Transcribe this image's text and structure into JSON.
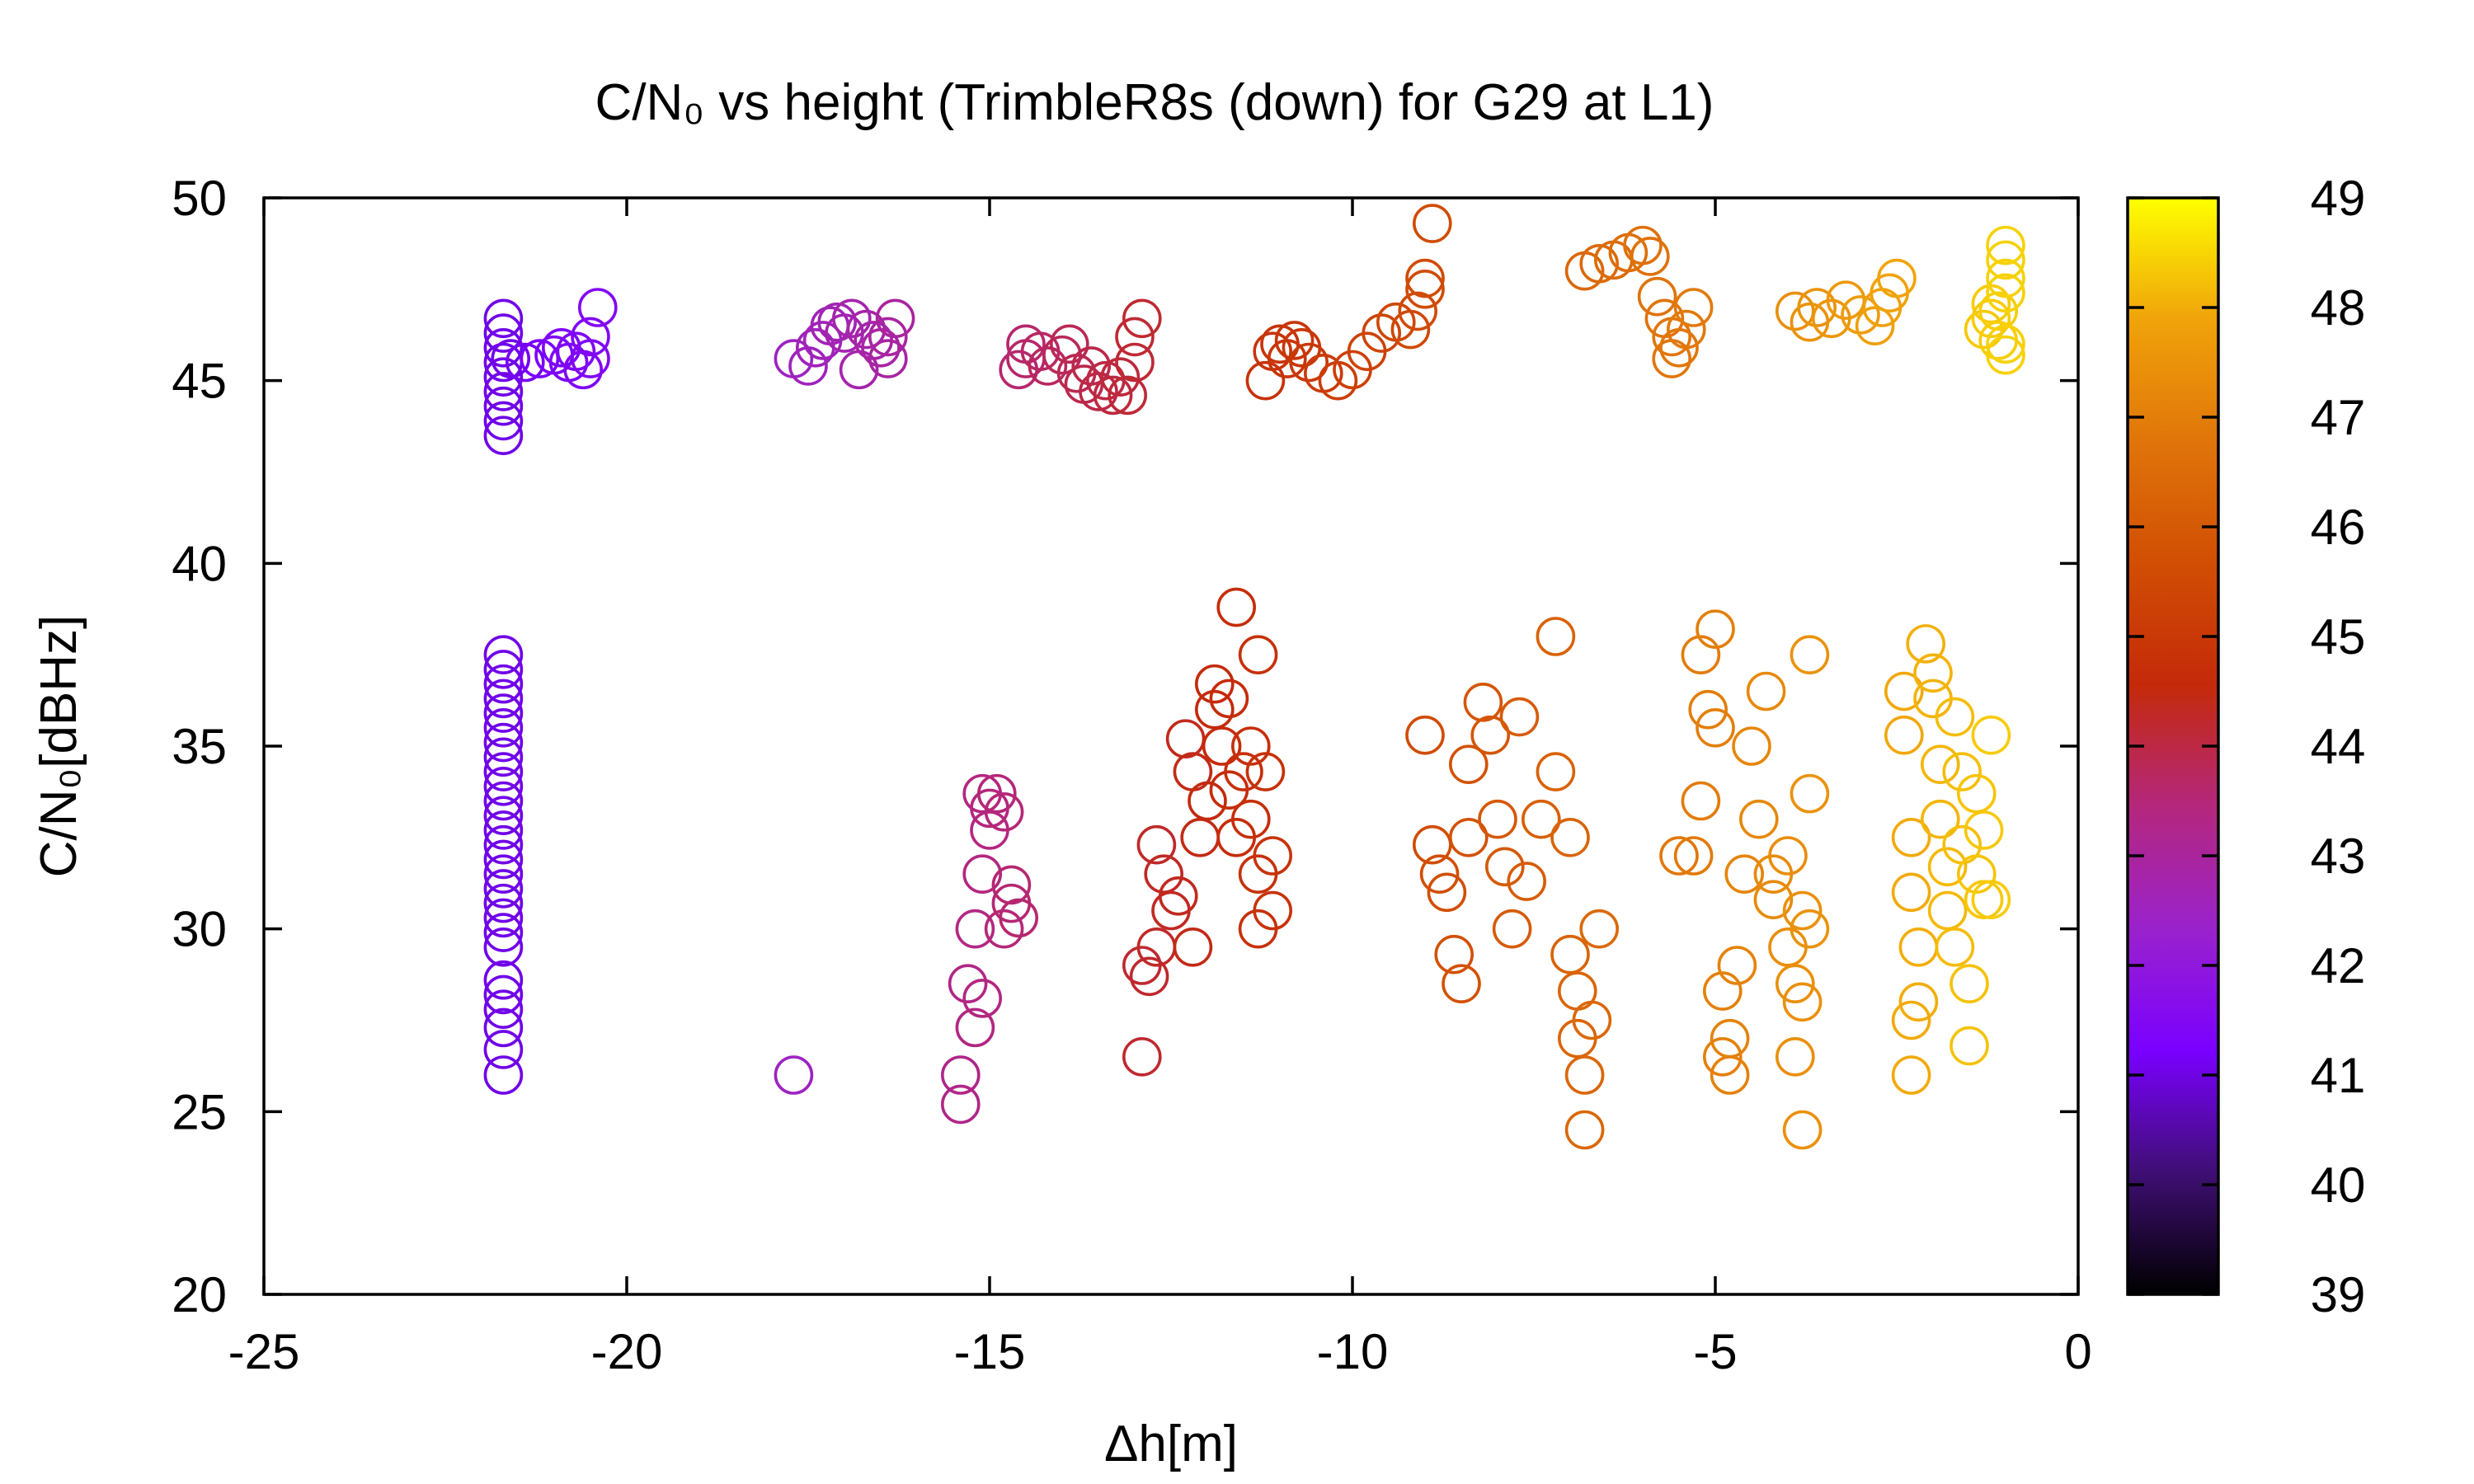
{
  "chart_data": {
    "type": "scatter",
    "title": "C/N₀ vs height (TrimbleR8s (down) for G29 at L1)",
    "xlabel": "Δh[m]",
    "ylabel": "C/N₀[dBHz]",
    "xlim": [
      -25,
      0
    ],
    "ylim": [
      20,
      50
    ],
    "xticks": [
      "-25",
      "-20",
      "-15",
      "-10",
      "-5",
      "0"
    ],
    "yticks": [
      "20",
      "25",
      "30",
      "35",
      "40",
      "45",
      "50"
    ],
    "colorbar": {
      "min": 39,
      "max": 49,
      "ticks": [
        "39",
        "40",
        "41",
        "42",
        "43",
        "44",
        "45",
        "46",
        "47",
        "48",
        "49"
      ],
      "palette": [
        "#000000",
        "#3f0f74",
        "#7a00ff",
        "#9a22cc",
        "#b4277d",
        "#c42a0a",
        "#d14e04",
        "#e0750a",
        "#f0a30a",
        "#ffff00"
      ]
    },
    "marker": "open-circle",
    "points": [
      [
        -21.7,
        46.7
      ],
      [
        -21.7,
        46.3
      ],
      [
        -21.7,
        45.9
      ],
      [
        -21.7,
        45.5
      ],
      [
        -21.7,
        45.1
      ],
      [
        -21.7,
        44.7
      ],
      [
        -21.7,
        44.3
      ],
      [
        -21.7,
        43.9
      ],
      [
        -21.7,
        43.5
      ],
      [
        -21.6,
        45.6
      ],
      [
        -21.4,
        45.5
      ],
      [
        -21.2,
        45.6
      ],
      [
        -21.0,
        45.7
      ],
      [
        -20.9,
        45.9
      ],
      [
        -20.8,
        45.5
      ],
      [
        -20.7,
        45.8
      ],
      [
        -20.6,
        45.3
      ],
      [
        -20.5,
        45.6
      ],
      [
        -20.5,
        46.2
      ],
      [
        -20.4,
        47.0
      ],
      [
        -17.7,
        45.6
      ],
      [
        -17.5,
        45.4
      ],
      [
        -17.4,
        45.9
      ],
      [
        -17.3,
        46.1
      ],
      [
        -17.2,
        46.5
      ],
      [
        -17.1,
        46.6
      ],
      [
        -17.0,
        46.3
      ],
      [
        -16.9,
        46.7
      ],
      [
        -16.8,
        45.3
      ],
      [
        -16.7,
        46.4
      ],
      [
        -16.6,
        46.1
      ],
      [
        -16.5,
        45.9
      ],
      [
        -16.4,
        45.6
      ],
      [
        -16.4,
        46.2
      ],
      [
        -16.3,
        46.7
      ],
      [
        -14.6,
        45.3
      ],
      [
        -14.5,
        45.6
      ],
      [
        -14.5,
        46.0
      ],
      [
        -14.3,
        45.8
      ],
      [
        -14.2,
        45.4
      ],
      [
        -14.0,
        45.7
      ],
      [
        -13.9,
        46.0
      ],
      [
        -13.8,
        45.2
      ],
      [
        -13.7,
        44.9
      ],
      [
        -13.6,
        45.4
      ],
      [
        -13.5,
        44.7
      ],
      [
        -13.4,
        45.0
      ],
      [
        -13.3,
        44.6
      ],
      [
        -13.2,
        45.1
      ],
      [
        -13.1,
        44.6
      ],
      [
        -13.0,
        45.5
      ],
      [
        -13.0,
        46.2
      ],
      [
        -12.9,
        46.7
      ],
      [
        -11.2,
        45.0
      ],
      [
        -11.1,
        45.8
      ],
      [
        -11.0,
        46.0
      ],
      [
        -10.9,
        45.6
      ],
      [
        -10.8,
        46.1
      ],
      [
        -10.7,
        45.9
      ],
      [
        -10.6,
        45.5
      ],
      [
        -10.4,
        45.2
      ],
      [
        -10.2,
        45.0
      ],
      [
        -10.0,
        45.3
      ],
      [
        -9.8,
        45.8
      ],
      [
        -9.6,
        46.3
      ],
      [
        -9.4,
        46.6
      ],
      [
        -9.2,
        46.4
      ],
      [
        -9.1,
        46.9
      ],
      [
        -9.0,
        47.5
      ],
      [
        -9.0,
        47.8
      ],
      [
        -8.9,
        49.3
      ],
      [
        -6.8,
        48.0
      ],
      [
        -6.6,
        48.2
      ],
      [
        -6.4,
        48.3
      ],
      [
        -6.2,
        48.5
      ],
      [
        -6.0,
        48.7
      ],
      [
        -5.9,
        48.4
      ],
      [
        -5.8,
        47.3
      ],
      [
        -5.7,
        46.7
      ],
      [
        -5.6,
        46.2
      ],
      [
        -5.6,
        45.6
      ],
      [
        -5.5,
        45.9
      ],
      [
        -5.4,
        46.4
      ],
      [
        -5.3,
        47.0
      ],
      [
        -3.9,
        46.9
      ],
      [
        -3.7,
        46.6
      ],
      [
        -3.6,
        47.0
      ],
      [
        -3.4,
        46.7
      ],
      [
        -3.2,
        47.2
      ],
      [
        -3.0,
        46.8
      ],
      [
        -2.8,
        46.5
      ],
      [
        -2.7,
        47.0
      ],
      [
        -2.6,
        47.4
      ],
      [
        -2.5,
        47.8
      ],
      [
        -1.3,
        46.4
      ],
      [
        -1.2,
        46.7
      ],
      [
        -1.2,
        47.1
      ],
      [
        -1.1,
        46.1
      ],
      [
        -1.1,
        46.9
      ],
      [
        -1.0,
        47.4
      ],
      [
        -1.0,
        47.8
      ],
      [
        -1.0,
        48.3
      ],
      [
        -1.0,
        48.7
      ],
      [
        -1.0,
        46.0
      ],
      [
        -1.0,
        45.7
      ],
      [
        -21.7,
        37.5
      ],
      [
        -21.7,
        37.1
      ],
      [
        -21.7,
        36.7
      ],
      [
        -21.7,
        36.3
      ],
      [
        -21.7,
        35.9
      ],
      [
        -21.7,
        35.5
      ],
      [
        -21.7,
        35.1
      ],
      [
        -21.7,
        34.7
      ],
      [
        -21.7,
        34.3
      ],
      [
        -21.7,
        33.9
      ],
      [
        -21.7,
        33.5
      ],
      [
        -21.7,
        33.1
      ],
      [
        -21.7,
        32.7
      ],
      [
        -21.7,
        32.3
      ],
      [
        -21.7,
        31.9
      ],
      [
        -21.7,
        31.5
      ],
      [
        -21.7,
        31.1
      ],
      [
        -21.7,
        30.7
      ],
      [
        -21.7,
        30.3
      ],
      [
        -21.7,
        29.9
      ],
      [
        -21.7,
        29.5
      ],
      [
        -21.7,
        28.6
      ],
      [
        -21.7,
        28.2
      ],
      [
        -21.7,
        27.8
      ],
      [
        -21.7,
        27.3
      ],
      [
        -21.7,
        26.7
      ],
      [
        -21.7,
        26.0
      ],
      [
        -17.7,
        26.0
      ],
      [
        -15.4,
        25.2
      ],
      [
        -15.4,
        26.0
      ],
      [
        -15.3,
        28.5
      ],
      [
        -15.2,
        30.0
      ],
      [
        -15.2,
        27.3
      ],
      [
        -15.1,
        28.1
      ],
      [
        -15.1,
        31.5
      ],
      [
        -15.1,
        33.7
      ],
      [
        -15.0,
        32.7
      ],
      [
        -15.0,
        33.3
      ],
      [
        -14.9,
        33.7
      ],
      [
        -14.8,
        33.2
      ],
      [
        -14.8,
        30.0
      ],
      [
        -14.7,
        30.7
      ],
      [
        -14.7,
        31.2
      ],
      [
        -14.6,
        30.3
      ],
      [
        -12.9,
        26.5
      ],
      [
        -12.9,
        29.0
      ],
      [
        -12.8,
        28.7
      ],
      [
        -12.7,
        29.5
      ],
      [
        -12.7,
        32.3
      ],
      [
        -12.6,
        31.5
      ],
      [
        -12.5,
        30.5
      ],
      [
        -12.4,
        30.9
      ],
      [
        -12.3,
        35.2
      ],
      [
        -12.2,
        34.3
      ],
      [
        -12.2,
        29.5
      ],
      [
        -12.1,
        32.5
      ],
      [
        -12.0,
        33.5
      ],
      [
        -11.9,
        36.0
      ],
      [
        -11.9,
        36.7
      ],
      [
        -11.8,
        35.0
      ],
      [
        -11.7,
        36.3
      ],
      [
        -11.7,
        33.8
      ],
      [
        -11.6,
        38.8
      ],
      [
        -11.6,
        32.5
      ],
      [
        -11.5,
        34.3
      ],
      [
        -11.4,
        35.0
      ],
      [
        -11.4,
        33.0
      ],
      [
        -11.3,
        37.5
      ],
      [
        -11.3,
        31.5
      ],
      [
        -11.3,
        30.0
      ],
      [
        -11.2,
        34.3
      ],
      [
        -11.1,
        30.5
      ],
      [
        -11.1,
        32.0
      ],
      [
        -9.0,
        35.3
      ],
      [
        -8.9,
        32.3
      ],
      [
        -8.8,
        31.5
      ],
      [
        -8.7,
        31.0
      ],
      [
        -8.6,
        29.3
      ],
      [
        -8.5,
        28.5
      ],
      [
        -8.4,
        32.5
      ],
      [
        -8.4,
        34.5
      ],
      [
        -8.2,
        36.2
      ],
      [
        -8.1,
        35.3
      ],
      [
        -8.0,
        33.0
      ],
      [
        -7.9,
        31.7
      ],
      [
        -7.8,
        30.0
      ],
      [
        -7.7,
        35.8
      ],
      [
        -7.6,
        31.3
      ],
      [
        -7.4,
        33.0
      ],
      [
        -7.2,
        38.0
      ],
      [
        -7.2,
        34.3
      ],
      [
        -7.0,
        32.5
      ],
      [
        -7.0,
        29.3
      ],
      [
        -6.9,
        28.3
      ],
      [
        -6.9,
        27.0
      ],
      [
        -6.8,
        24.5
      ],
      [
        -6.8,
        26.0
      ],
      [
        -6.7,
        27.5
      ],
      [
        -6.6,
        30.0
      ],
      [
        -5.5,
        32.0
      ],
      [
        -5.3,
        32.0
      ],
      [
        -5.2,
        37.5
      ],
      [
        -5.2,
        33.5
      ],
      [
        -5.1,
        36.0
      ],
      [
        -5.0,
        38.2
      ],
      [
        -5.0,
        35.5
      ],
      [
        -4.9,
        26.5
      ],
      [
        -4.9,
        28.3
      ],
      [
        -4.8,
        26.0
      ],
      [
        -4.8,
        27.0
      ],
      [
        -4.7,
        29.0
      ],
      [
        -4.6,
        31.5
      ],
      [
        -4.5,
        35.0
      ],
      [
        -4.4,
        33.0
      ],
      [
        -4.3,
        36.5
      ],
      [
        -4.2,
        30.8
      ],
      [
        -4.2,
        31.5
      ],
      [
        -4.0,
        32.0
      ],
      [
        -4.0,
        29.5
      ],
      [
        -3.9,
        28.5
      ],
      [
        -3.9,
        26.5
      ],
      [
        -3.8,
        24.5
      ],
      [
        -3.8,
        30.5
      ],
      [
        -3.7,
        37.5
      ],
      [
        -3.7,
        33.7
      ],
      [
        -3.7,
        30.0
      ],
      [
        -3.8,
        28.0
      ],
      [
        -2.4,
        36.5
      ],
      [
        -2.4,
        35.3
      ],
      [
        -2.3,
        32.5
      ],
      [
        -2.3,
        31.0
      ],
      [
        -2.2,
        29.5
      ],
      [
        -2.2,
        28.0
      ],
      [
        -2.3,
        27.5
      ],
      [
        -2.3,
        26.0
      ],
      [
        -2.1,
        37.8
      ],
      [
        -2.0,
        37.0
      ],
      [
        -2.0,
        36.3
      ],
      [
        -1.9,
        34.5
      ],
      [
        -1.9,
        33.0
      ],
      [
        -1.8,
        31.7
      ],
      [
        -1.8,
        30.5
      ],
      [
        -1.7,
        29.5
      ],
      [
        -1.7,
        35.8
      ],
      [
        -1.6,
        34.3
      ],
      [
        -1.6,
        32.3
      ],
      [
        -1.5,
        28.5
      ],
      [
        -1.5,
        26.8
      ],
      [
        -1.4,
        31.5
      ],
      [
        -1.4,
        33.7
      ],
      [
        -1.3,
        30.8
      ],
      [
        -1.3,
        32.7
      ],
      [
        -1.2,
        30.8
      ],
      [
        -1.2,
        35.3
      ]
    ]
  }
}
